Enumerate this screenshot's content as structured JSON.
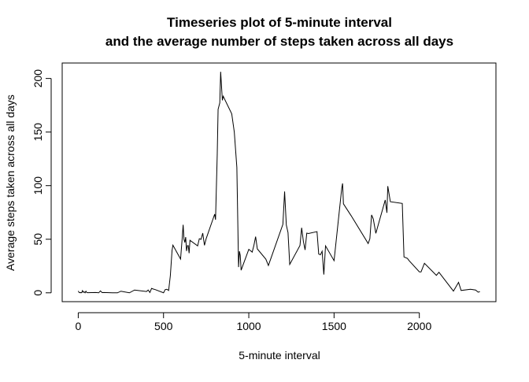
{
  "chart_data": {
    "type": "line",
    "title": "Timeseries plot of 5-minute interval",
    "subtitle": "and the average number of steps taken across all days",
    "xlabel": "5-minute interval",
    "ylabel": "Average steps taken across all days",
    "color": "#000000",
    "x": [
      0,
      5,
      10,
      15,
      20,
      25,
      30,
      35,
      40,
      45,
      50,
      55,
      100,
      110,
      120,
      130,
      140,
      150,
      200,
      230,
      250,
      300,
      330,
      400,
      410,
      420,
      430,
      440,
      450,
      500,
      510,
      520,
      530,
      540,
      550,
      555,
      600,
      610,
      615,
      620,
      625,
      630,
      635,
      640,
      645,
      650,
      655,
      700,
      710,
      720,
      730,
      740,
      750,
      800,
      805,
      815,
      820,
      830,
      835,
      845,
      850,
      900,
      915,
      930,
      940,
      945,
      950,
      955,
      1000,
      1020,
      1030,
      1040,
      1050,
      1100,
      1115,
      1200,
      1210,
      1220,
      1230,
      1240,
      1300,
      1310,
      1320,
      1330,
      1340,
      1350,
      1400,
      1410,
      1420,
      1430,
      1440,
      1450,
      1500,
      1545,
      1550,
      1555,
      1600,
      1700,
      1710,
      1720,
      1730,
      1745,
      1800,
      1810,
      1815,
      1830,
      1900,
      1910,
      1930,
      1940,
      2000,
      2010,
      2030,
      2100,
      2115,
      2200,
      2230,
      2245,
      2300,
      2330,
      2345,
      2355
    ],
    "values": [
      1.7,
      0.3,
      0.1,
      0.2,
      0.1,
      2.1,
      0.5,
      0.9,
      0,
      1.5,
      0.3,
      0.1,
      0.3,
      0.2,
      0,
      1.8,
      0.2,
      0.3,
      0,
      0,
      1.5,
      0,
      2.6,
      1.2,
      2.6,
      0.3,
      4.1,
      3.5,
      3.1,
      0,
      3,
      3.3,
      2.2,
      16,
      39.5,
      44.5,
      31.5,
      52,
      63.5,
      50,
      47,
      52,
      39,
      44,
      44,
      37,
      49,
      43.8,
      50.5,
      49.9,
      55.7,
      44.3,
      50.5,
      73.4,
      68.2,
      129.4,
      171.2,
      177.3,
      206.2,
      179.6,
      183.4,
      167,
      150,
      117,
      24,
      38.8,
      34.9,
      21.1,
      40.6,
      38,
      44.3,
      52.4,
      41,
      31.4,
      25.5,
      63.9,
      94.5,
      63.3,
      56.2,
      26.5,
      44.1,
      60.7,
      48.1,
      40,
      55.7,
      55.3,
      57.1,
      36.2,
      35.5,
      38.8,
      17,
      43.8,
      30,
      97.5,
      102.1,
      83,
      72,
      46,
      50.5,
      72.7,
      68.9,
      55.5,
      86.6,
      74.7,
      99.5,
      85,
      83.4,
      33.5,
      32.1,
      30,
      19.6,
      19.5,
      27.6,
      16.3,
      19.2,
      1.6,
      9.8,
      2.2,
      3.3,
      2.6,
      0.6,
      1.1
    ],
    "xlim": [
      -94.2,
      2449.2
    ],
    "ylim": [
      -8.25,
      214.42
    ],
    "xticks": [
      0,
      500,
      1000,
      1500,
      2000
    ],
    "yticks": [
      0,
      50,
      100,
      150,
      200
    ]
  }
}
